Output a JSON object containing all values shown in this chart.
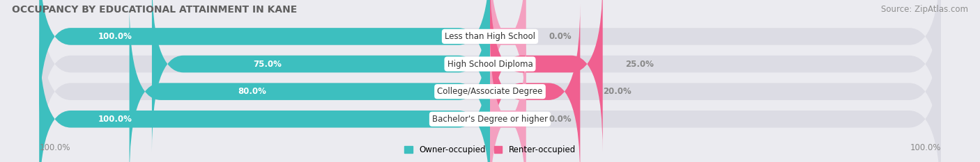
{
  "title": "OCCUPANCY BY EDUCATIONAL ATTAINMENT IN KANE",
  "source": "Source: ZipAtlas.com",
  "categories": [
    "Less than High School",
    "High School Diploma",
    "College/Associate Degree",
    "Bachelor's Degree or higher"
  ],
  "owner_values": [
    100.0,
    75.0,
    80.0,
    100.0
  ],
  "renter_values": [
    0.0,
    25.0,
    20.0,
    0.0
  ],
  "owner_color": "#3dbfbf",
  "renter_color": "#f06090",
  "renter_color_light": "#f4a0c0",
  "bar_bg_color": "#dcdce4",
  "background_color": "#ebebf0",
  "title_color": "#606060",
  "source_color": "#909090",
  "value_color": "#888888",
  "title_fontsize": 10,
  "label_fontsize": 8.5,
  "value_fontsize": 8.5,
  "tick_fontsize": 8.5,
  "bar_height": 0.62,
  "legend_labels": [
    "Owner-occupied",
    "Renter-occupied"
  ],
  "bottom_left_label": "100.0%",
  "bottom_right_label": "100.0%"
}
